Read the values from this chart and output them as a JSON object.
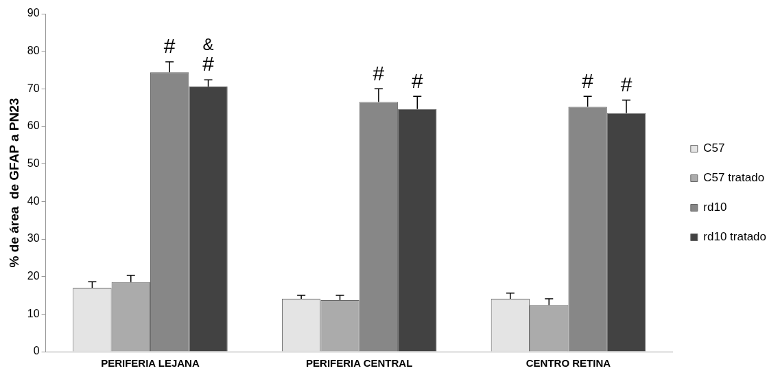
{
  "chart_data": {
    "type": "bar",
    "ylabel": "% de área  de GFAP a PN23",
    "categories": [
      "PERIFERIA LEJANA",
      "PERIFERIA CENTRAL",
      "CENTRO RETINA"
    ],
    "series": [
      {
        "name": "C57",
        "color": "#e4e4e4",
        "values": [
          17,
          14.1,
          14.1
        ],
        "errors": [
          [
            17,
            18.6
          ],
          [
            14.1,
            15
          ],
          [
            14.1,
            15.6
          ]
        ]
      },
      {
        "name": "C57 tratado",
        "color": "#ababab",
        "values": [
          18.5,
          13.7,
          12.4
        ],
        "errors": [
          [
            18.5,
            20.3
          ],
          [
            13.7,
            15
          ],
          [
            12.4,
            14.1
          ]
        ]
      },
      {
        "name": "rd10",
        "color": "#878787",
        "values": [
          74.4,
          66.5,
          65.2
        ],
        "errors": [
          [
            74.4,
            77.2
          ],
          [
            66.5,
            70
          ],
          [
            65.2,
            68
          ]
        ],
        "value_labels": [
          "#",
          "#",
          "#"
        ]
      },
      {
        "name": "rd10 tratado",
        "color": "#424242",
        "values": [
          70.6,
          64.6,
          63.5
        ],
        "errors": [
          [
            70.6,
            72.4
          ],
          [
            64.6,
            68
          ],
          [
            63.5,
            67
          ]
        ],
        "value_labels": [
          "&\n#",
          "#",
          "#"
        ]
      }
    ],
    "ylim": [
      0,
      90
    ],
    "yticks": [
      0,
      10,
      20,
      30,
      40,
      50,
      60,
      70,
      80,
      90
    ],
    "legend": "right",
    "grid": false
  }
}
